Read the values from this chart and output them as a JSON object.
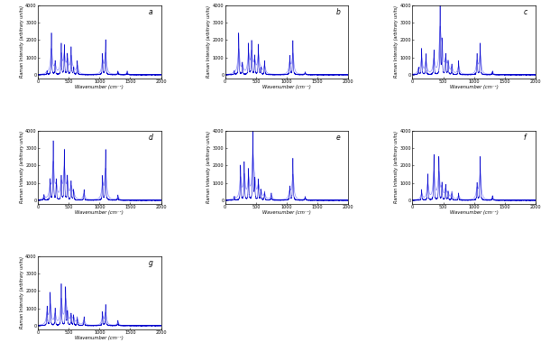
{
  "xlim": [
    0,
    2000
  ],
  "ylim": [
    -200,
    4000
  ],
  "yticks": [
    0,
    1000,
    2000,
    3000,
    4000
  ],
  "xticks": [
    0,
    500,
    1000,
    1500,
    2000
  ],
  "xlabel": "Wavenumber (cm⁻¹)",
  "ylabel": "Raman Intensity (arbitrary units)",
  "line_color": "#0000cc",
  "line_color2": "#6666ff",
  "line_width": 0.4,
  "labels": [
    "a",
    "b",
    "c",
    "d",
    "e",
    "f",
    "g"
  ],
  "figsize": [
    6.0,
    3.9
  ],
  "dpi": 100,
  "bg_color": "#ffffff",
  "peaks_a": [
    [
      150,
      200
    ],
    [
      220,
      2400
    ],
    [
      280,
      800
    ],
    [
      380,
      1800
    ],
    [
      430,
      1700
    ],
    [
      480,
      1200
    ],
    [
      540,
      1600
    ],
    [
      580,
      400
    ],
    [
      640,
      800
    ],
    [
      1050,
      1200
    ],
    [
      1100,
      2000
    ],
    [
      1300,
      200
    ],
    [
      1450,
      200
    ]
  ],
  "peaks_b": [
    [
      150,
      200
    ],
    [
      220,
      2400
    ],
    [
      280,
      700
    ],
    [
      380,
      1800
    ],
    [
      430,
      1950
    ],
    [
      480,
      1100
    ],
    [
      540,
      1750
    ],
    [
      580,
      400
    ],
    [
      640,
      800
    ],
    [
      1050,
      1100
    ],
    [
      1100,
      1950
    ],
    [
      1300,
      150
    ]
  ],
  "peaks_c": [
    [
      100,
      400
    ],
    [
      150,
      1500
    ],
    [
      220,
      1200
    ],
    [
      350,
      1400
    ],
    [
      450,
      4000
    ],
    [
      480,
      2000
    ],
    [
      540,
      1200
    ],
    [
      580,
      800
    ],
    [
      640,
      600
    ],
    [
      750,
      800
    ],
    [
      1050,
      1200
    ],
    [
      1100,
      1800
    ],
    [
      1300,
      200
    ]
  ],
  "peaks_d": [
    [
      100,
      300
    ],
    [
      200,
      1200
    ],
    [
      250,
      3400
    ],
    [
      300,
      1200
    ],
    [
      380,
      1400
    ],
    [
      430,
      2900
    ],
    [
      480,
      1400
    ],
    [
      540,
      1100
    ],
    [
      580,
      600
    ],
    [
      750,
      600
    ],
    [
      1050,
      1400
    ],
    [
      1100,
      2900
    ],
    [
      1300,
      300
    ]
  ],
  "peaks_e": [
    [
      150,
      200
    ],
    [
      250,
      2000
    ],
    [
      310,
      2200
    ],
    [
      380,
      1800
    ],
    [
      450,
      4000
    ],
    [
      480,
      1200
    ],
    [
      540,
      1200
    ],
    [
      580,
      600
    ],
    [
      640,
      500
    ],
    [
      750,
      400
    ],
    [
      1050,
      800
    ],
    [
      1100,
      2400
    ],
    [
      1300,
      200
    ]
  ],
  "peaks_f": [
    [
      150,
      600
    ],
    [
      250,
      1500
    ],
    [
      350,
      2600
    ],
    [
      430,
      2500
    ],
    [
      480,
      1000
    ],
    [
      540,
      900
    ],
    [
      580,
      500
    ],
    [
      640,
      500
    ],
    [
      750,
      400
    ],
    [
      1050,
      1000
    ],
    [
      1100,
      2500
    ],
    [
      1300,
      250
    ]
  ],
  "peaks_g": [
    [
      150,
      1100
    ],
    [
      200,
      1900
    ],
    [
      280,
      1000
    ],
    [
      380,
      2400
    ],
    [
      450,
      2200
    ],
    [
      480,
      800
    ],
    [
      540,
      700
    ],
    [
      580,
      600
    ],
    [
      640,
      500
    ],
    [
      750,
      500
    ],
    [
      1050,
      800
    ],
    [
      1100,
      1200
    ],
    [
      1300,
      300
    ]
  ]
}
